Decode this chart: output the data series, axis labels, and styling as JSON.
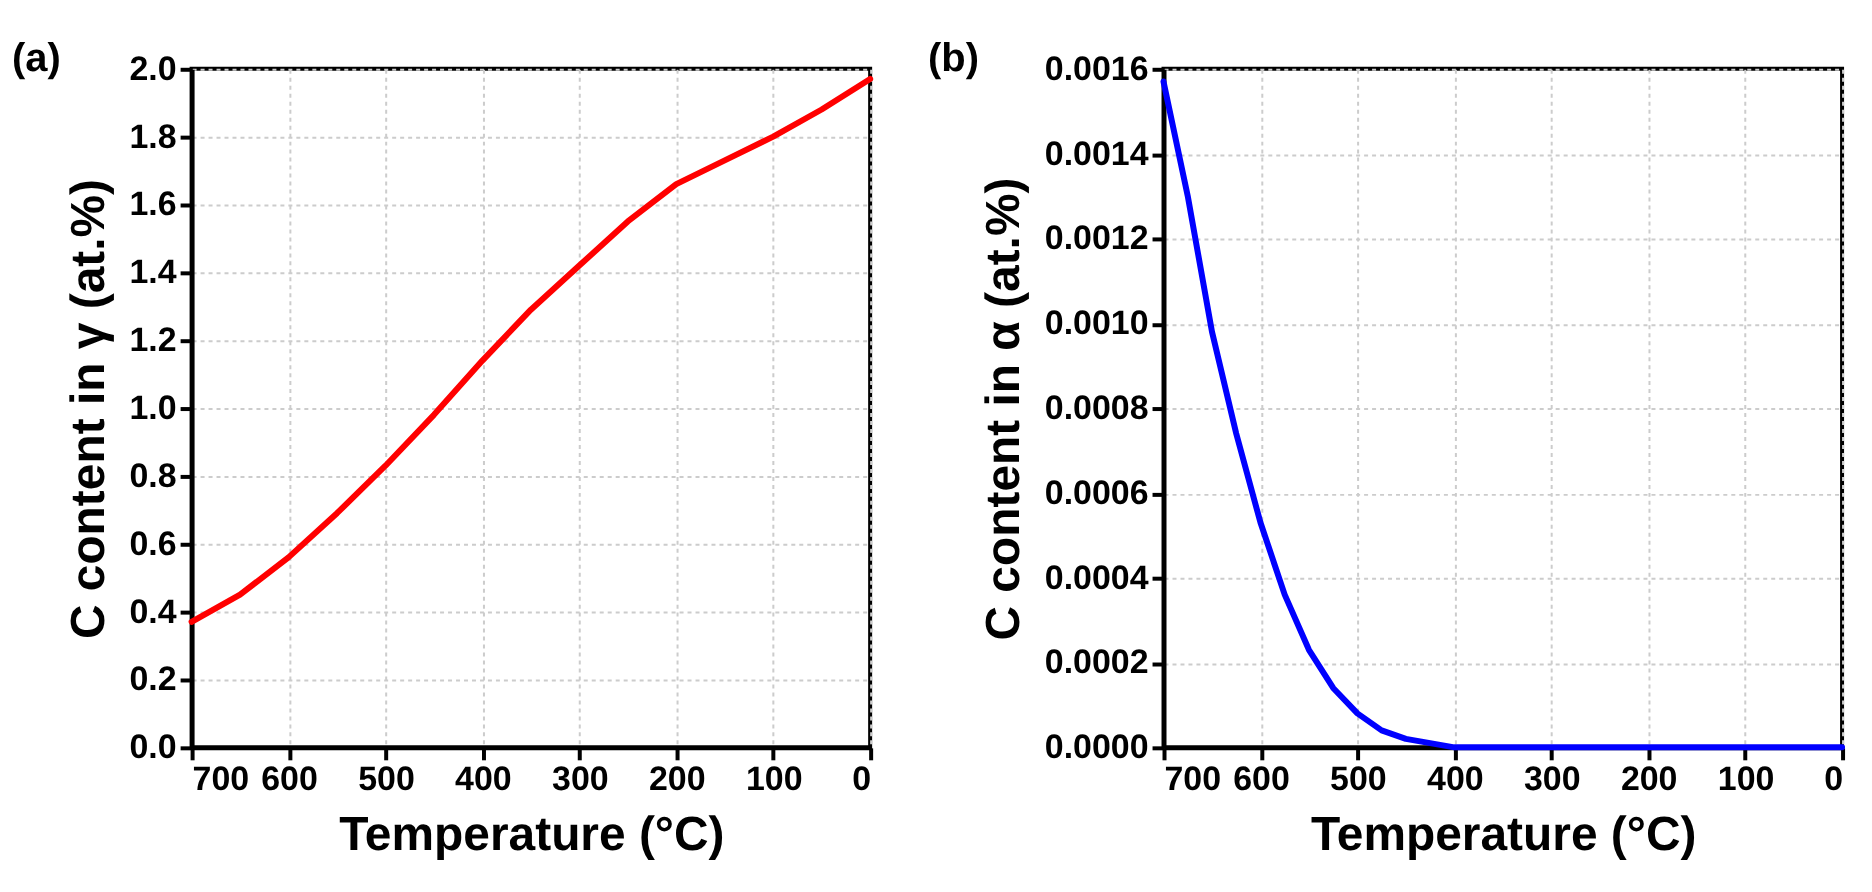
{
  "chart_data": [
    {
      "type": "line",
      "title": "(a)",
      "xlabel": "Temperature (°C)",
      "ylabel": "C content in γ (at.%)",
      "x": [
        700,
        650,
        600,
        550,
        500,
        450,
        400,
        350,
        300,
        250,
        200,
        150,
        100,
        50,
        0
      ],
      "series": [
        {
          "color": "#ff0000",
          "values": [
            0.37,
            0.45,
            0.56,
            0.69,
            0.83,
            0.98,
            1.14,
            1.29,
            1.42,
            1.55,
            1.66,
            1.73,
            1.8,
            1.88,
            1.97
          ]
        }
      ],
      "xlim": [
        700,
        0
      ],
      "xticks": [
        700,
        600,
        500,
        400,
        300,
        200,
        100,
        0
      ],
      "ylim": [
        0,
        2
      ],
      "yticks": [
        {
          "value": 0,
          "label": "0.0"
        },
        0.2,
        0.4,
        0.6,
        0.8,
        {
          "value": 1,
          "label": "1.0"
        },
        1.2,
        1.4,
        1.6,
        1.8,
        {
          "value": 2,
          "label": "2.0"
        }
      ],
      "grid": true,
      "line_style": "solid",
      "marker": "none"
    },
    {
      "type": "line",
      "title": "(b)",
      "xlabel": "Temperature (°C)",
      "ylabel": "C content in α (at.%)",
      "x": [
        700,
        675,
        650,
        625,
        600,
        575,
        550,
        525,
        500,
        475,
        450,
        425,
        400,
        350,
        300,
        200,
        100,
        0
      ],
      "series": [
        {
          "color": "#0000ff",
          "values": [
            0.00157,
            0.0013,
            0.00098,
            0.00074,
            0.00053,
            0.00036,
            0.00023,
            0.00014,
            8e-05,
            4e-05,
            2e-05,
            1e-05,
            0.0,
            0.0,
            0.0,
            0.0,
            0.0,
            0.0
          ]
        }
      ],
      "xlim": [
        700,
        0
      ],
      "xticks": [
        700,
        600,
        500,
        400,
        300,
        200,
        100,
        0
      ],
      "ylim": [
        0,
        0.0016
      ],
      "yticks": [
        {
          "value": 0,
          "label": "0.0000"
        },
        {
          "value": 0.0002,
          "label": "0.0002"
        },
        {
          "value": 0.0004,
          "label": "0.0004"
        },
        {
          "value": 0.0006,
          "label": "0.0006"
        },
        {
          "value": 0.0008,
          "label": "0.0008"
        },
        {
          "value": 0.001,
          "label": "0.0010"
        },
        {
          "value": 0.0012,
          "label": "0.0012"
        },
        {
          "value": 0.0014,
          "label": "0.0014"
        },
        {
          "value": 0.0016,
          "label": "0.0016"
        }
      ],
      "grid": true,
      "line_style": "solid",
      "marker": "none"
    }
  ]
}
